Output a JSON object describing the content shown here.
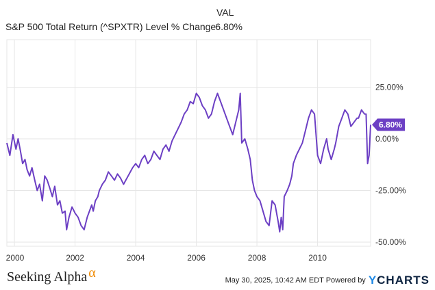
{
  "header": {
    "column_label": "VAL",
    "series_name": "S&P 500 Total Return (^SPXTR) Level % Change",
    "series_value": "6.80%"
  },
  "footer": {
    "brand": "Seeking Alpha",
    "brand_mark": "α",
    "timestamp": "May 30, 2025, 10:42 AM EDT Powered by",
    "provider_logo": "YCHARTS"
  },
  "colors": {
    "series": "#6c3fc4",
    "grid": "#e6e6e6",
    "tick_label": "#333333",
    "brand_accent": "#f08a00"
  },
  "chart_data": {
    "type": "line",
    "title": "",
    "xlabel": "",
    "ylabel": "",
    "x_ticks": [
      "2000",
      "2002",
      "2004",
      "2006",
      "2008",
      "2010"
    ],
    "y_ticks": [
      "25.00%",
      "0.00%",
      "-25.00%",
      "-50.00%"
    ],
    "y_tick_values": [
      25,
      0,
      -25,
      -50
    ],
    "ylim": [
      -52,
      48
    ],
    "xlim": [
      1999.75,
      2011.75
    ],
    "grid": true,
    "end_label": "6.80%",
    "series": [
      {
        "name": "S&P 500 Total Return (^SPXTR) Level % Change",
        "x": [
          1999.75,
          1999.85,
          1999.95,
          2000.05,
          2000.12,
          2000.2,
          2000.27,
          2000.35,
          2000.42,
          2000.5,
          2000.58,
          2000.67,
          2000.75,
          2000.83,
          2000.92,
          2001.0,
          2001.08,
          2001.17,
          2001.25,
          2001.33,
          2001.42,
          2001.5,
          2001.58,
          2001.67,
          2001.72,
          2001.8,
          2001.9,
          2002.0,
          2002.1,
          2002.2,
          2002.3,
          2002.4,
          2002.5,
          2002.55,
          2002.6,
          2002.67,
          2002.75,
          2002.8,
          2002.9,
          2003.0,
          2003.1,
          2003.2,
          2003.3,
          2003.4,
          2003.5,
          2003.6,
          2003.75,
          2003.9,
          2004.0,
          2004.1,
          2004.2,
          2004.3,
          2004.4,
          2004.5,
          2004.6,
          2004.7,
          2004.8,
          2004.9,
          2005.0,
          2005.1,
          2005.2,
          2005.3,
          2005.4,
          2005.5,
          2005.6,
          2005.7,
          2005.8,
          2005.9,
          2006.0,
          2006.1,
          2006.2,
          2006.3,
          2006.4,
          2006.5,
          2006.6,
          2006.7,
          2006.8,
          2006.9,
          2007.0,
          2007.1,
          2007.2,
          2007.3,
          2007.4,
          2007.45,
          2007.5,
          2007.6,
          2007.7,
          2007.78,
          2007.85,
          2007.92,
          2008.0,
          2008.1,
          2008.2,
          2008.3,
          2008.4,
          2008.5,
          2008.6,
          2008.7,
          2008.75,
          2008.8,
          2008.85,
          2008.9,
          2009.0,
          2009.08,
          2009.15,
          2009.2,
          2009.3,
          2009.4,
          2009.5,
          2009.6,
          2009.7,
          2009.8,
          2009.9,
          2010.0,
          2010.1,
          2010.2,
          2010.3,
          2010.35,
          2010.45,
          2010.55,
          2010.6,
          2010.7,
          2010.8,
          2010.9,
          2011.0,
          2011.1,
          2011.2,
          2011.3,
          2011.35,
          2011.45,
          2011.55,
          2011.6,
          2011.65,
          2011.7,
          2011.75
        ],
        "values": [
          -2,
          -8,
          2,
          -5,
          0,
          -6,
          -12,
          -10,
          -15,
          -18,
          -14,
          -20,
          -25,
          -22,
          -30,
          -18,
          -20,
          -24,
          -28,
          -23,
          -32,
          -30,
          -36,
          -35,
          -44,
          -38,
          -33,
          -36,
          -38,
          -42,
          -44,
          -38,
          -34,
          -32,
          -35,
          -30,
          -28,
          -25,
          -22,
          -20,
          -16,
          -18,
          -20,
          -17,
          -19,
          -22,
          -18,
          -14,
          -12,
          -14,
          -10,
          -8,
          -12,
          -10,
          -6,
          -8,
          -10,
          -5,
          -3,
          -6,
          -1,
          2,
          5,
          8,
          12,
          14,
          18,
          17,
          22,
          20,
          16,
          14,
          10,
          12,
          18,
          22,
          18,
          14,
          10,
          6,
          2,
          8,
          14,
          22,
          -2,
          0,
          -5,
          -10,
          -20,
          -25,
          -28,
          -30,
          -35,
          -40,
          -42,
          -30,
          -32,
          -40,
          -45,
          -38,
          -44,
          -28,
          -25,
          -22,
          -18,
          -12,
          -8,
          -5,
          -2,
          4,
          10,
          14,
          12,
          -8,
          -12,
          -5,
          0,
          -5,
          -10,
          -5,
          -2,
          6,
          10,
          14,
          12,
          6,
          8,
          10,
          10,
          14,
          12,
          12,
          -12,
          -8,
          6.8
        ]
      }
    ]
  }
}
